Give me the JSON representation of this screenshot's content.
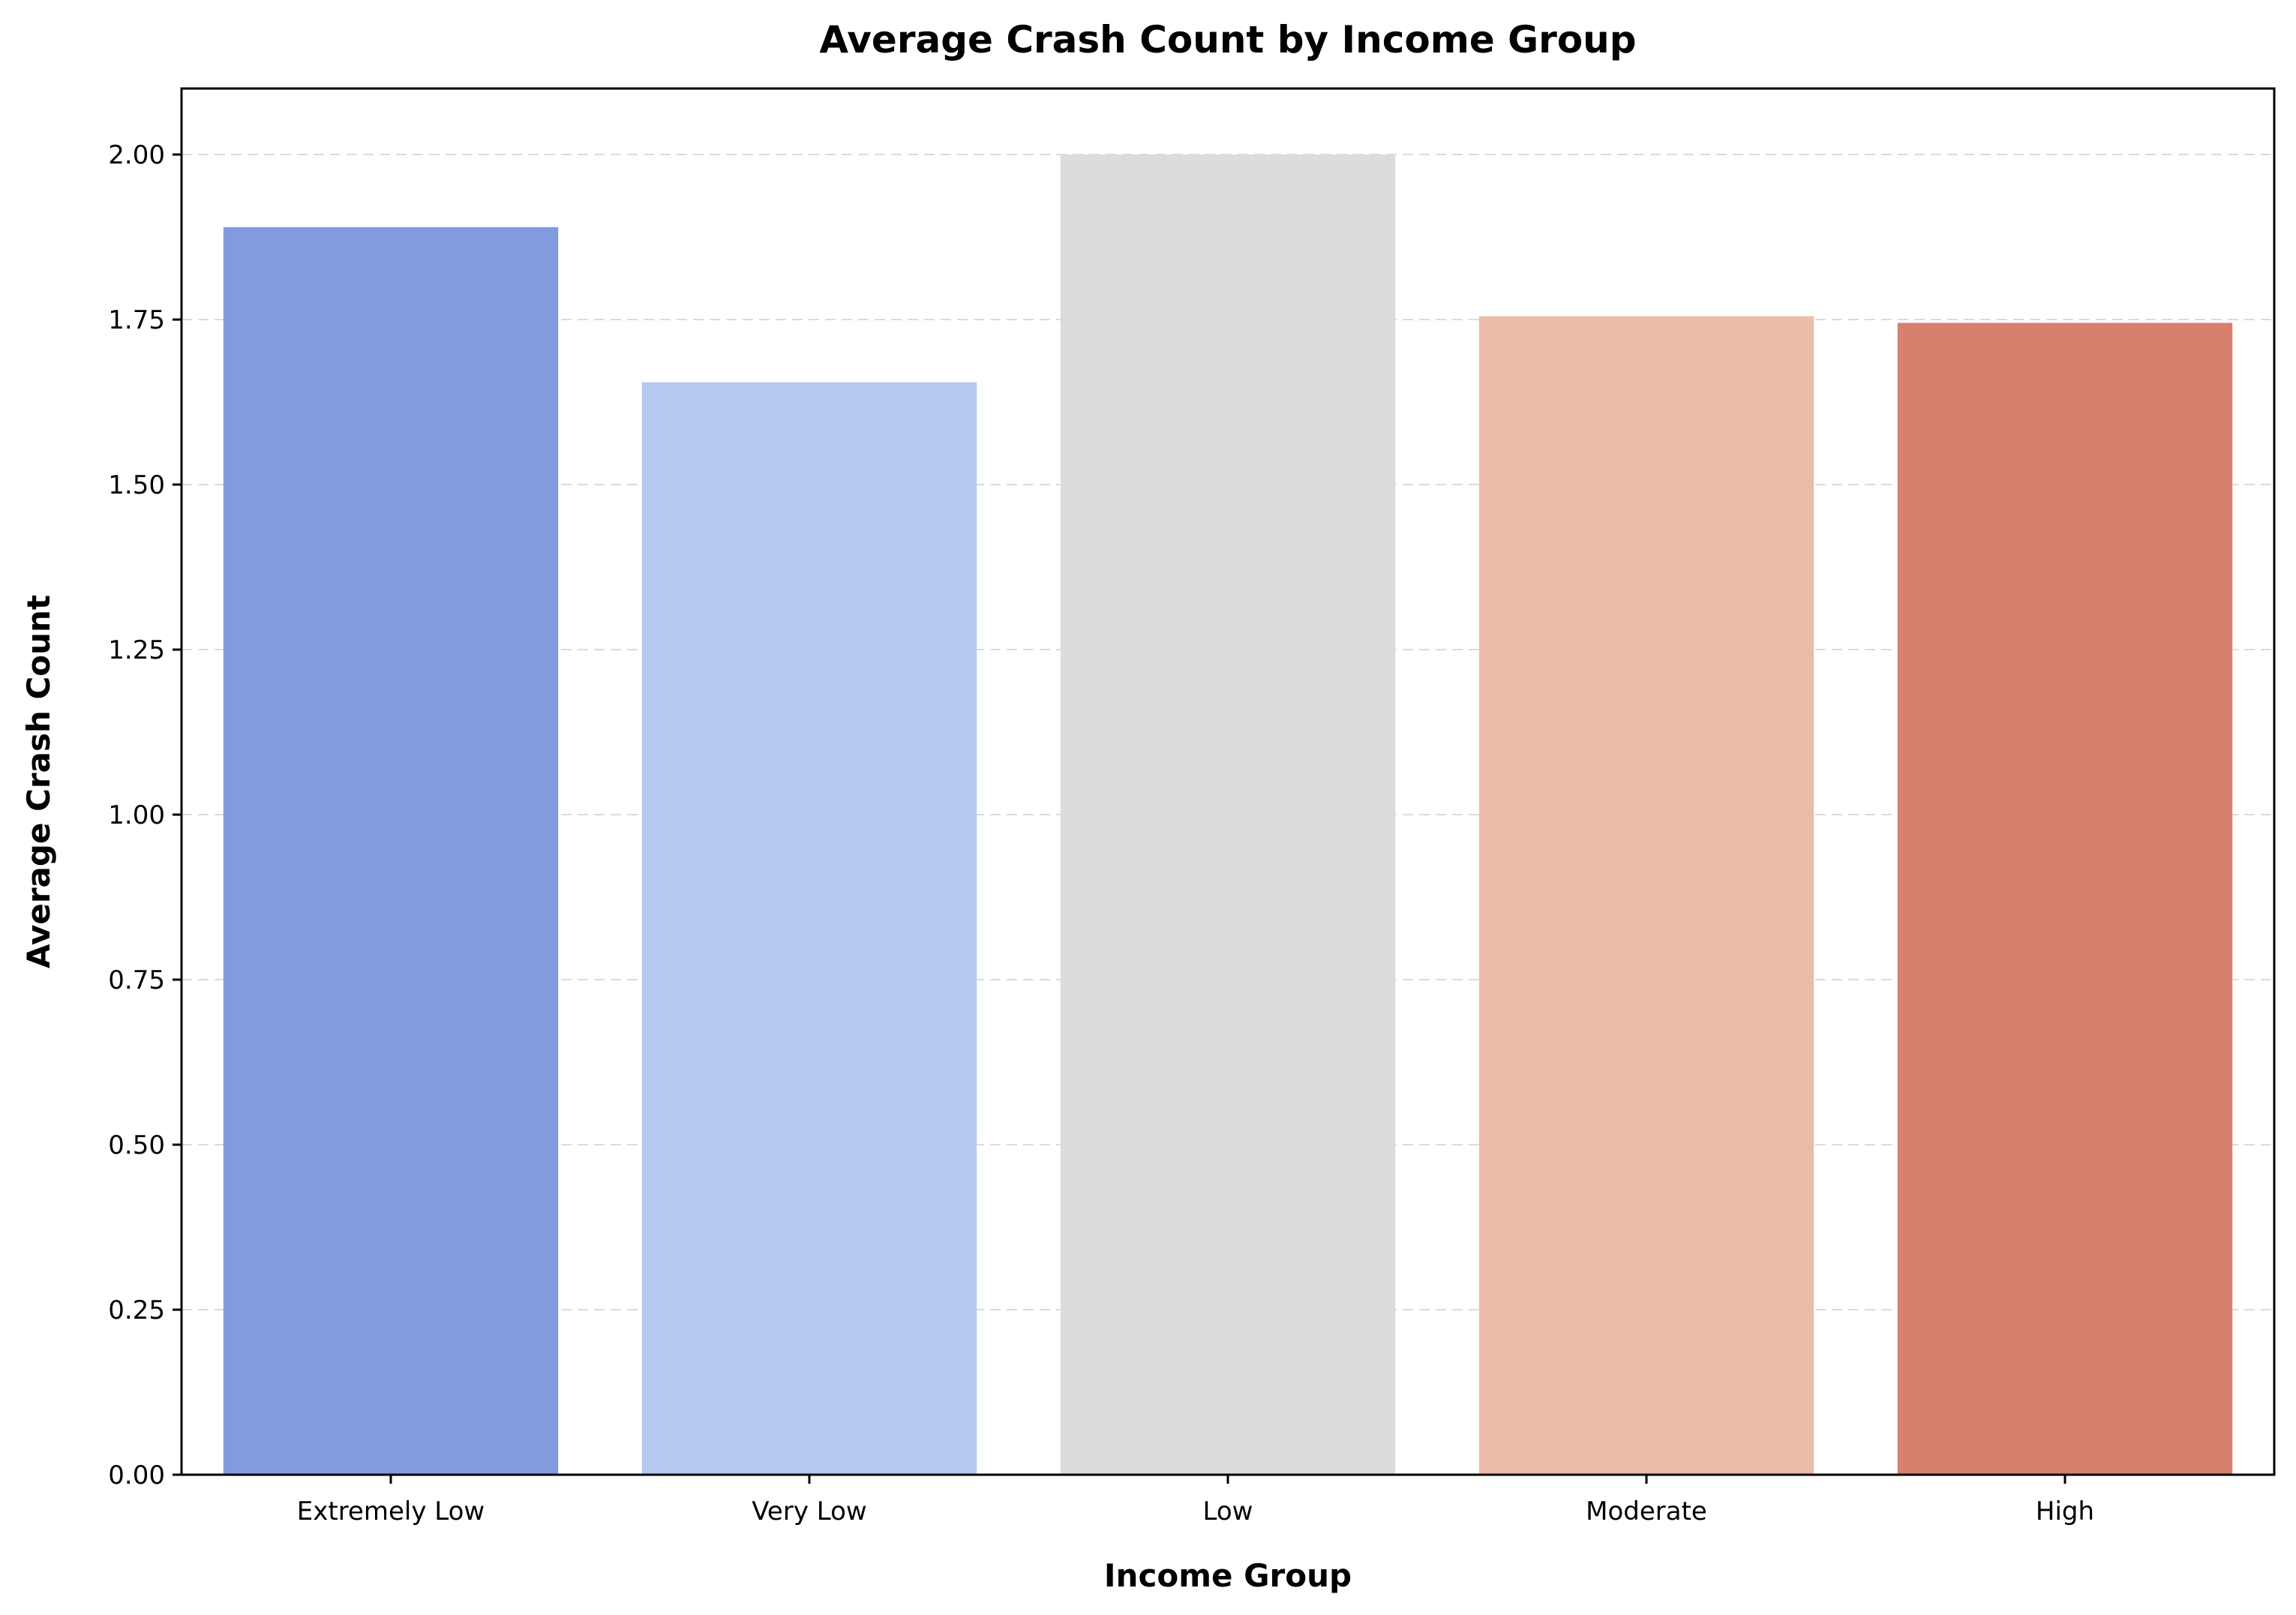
{
  "chart_data": {
    "type": "bar",
    "title": "Average Crash Count by Income Group",
    "xlabel": "Income Group",
    "ylabel": "Average Crash Count",
    "categories": [
      "Extremely Low",
      "Very Low",
      "Low",
      "Moderate",
      "High"
    ],
    "values": [
      1.89,
      1.655,
      2.0,
      1.755,
      1.745
    ],
    "colors": [
      "#829bdf",
      "#b6c9f1",
      "#dcdcdc",
      "#ebbca7",
      "#d6806d"
    ],
    "ylim": [
      0,
      2.1
    ],
    "yticks": [
      0.0,
      0.25,
      0.5,
      0.75,
      1.0,
      1.25,
      1.5,
      1.75,
      2.0
    ],
    "ytick_labels": [
      "0.00",
      "0.25",
      "0.50",
      "0.75",
      "1.00",
      "1.25",
      "1.50",
      "1.75",
      "2.00"
    ],
    "grid": "y-dashed",
    "legend": "none"
  }
}
